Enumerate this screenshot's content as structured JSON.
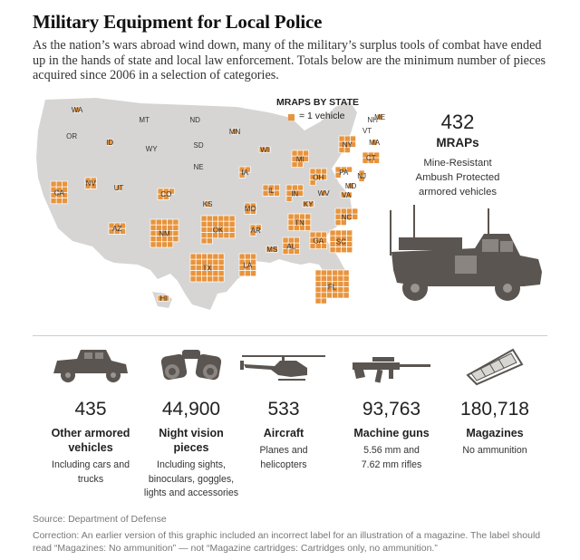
{
  "title": "Military Equipment for Local Police",
  "dek": "As the nation’s wars abroad wind down, many of the military’s surplus tools of combat have ended up in the hands of state and local law enforcement. Totals below are the minimum number of pieces acquired since 2006 in a selection of categories.",
  "legend": {
    "title": "MRAPS BY STATE",
    "unit": "= 1 vehicle"
  },
  "mrap": {
    "value": "432",
    "label": "MRAPs",
    "desc": [
      "Mine-Resistant",
      "Ambush Protected",
      "armored vehicles"
    ]
  },
  "colors": {
    "accent": "#e8943d",
    "map_land": "#d6d5d3",
    "icon": "#5a5551",
    "text": "#222222"
  },
  "chart_data": {
    "type": "table",
    "title": "MRAPS BY STATE",
    "unit": "1 square = 1 vehicle",
    "states": [
      {
        "state": "WA",
        "mraps": 1
      },
      {
        "state": "OR",
        "mraps": 0
      },
      {
        "state": "ID",
        "mraps": 1
      },
      {
        "state": "MT",
        "mraps": 0
      },
      {
        "state": "ND",
        "mraps": 0
      },
      {
        "state": "MN",
        "mraps": 1
      },
      {
        "state": "WY",
        "mraps": 0
      },
      {
        "state": "SD",
        "mraps": 0
      },
      {
        "state": "WI",
        "mraps": 2
      },
      {
        "state": "MI",
        "mraps": 8
      },
      {
        "state": "NY",
        "mraps": 8
      },
      {
        "state": "VT",
        "mraps": 0
      },
      {
        "state": "NH",
        "mraps": 0
      },
      {
        "state": "ME",
        "mraps": 1
      },
      {
        "state": "MA",
        "mraps": 1
      },
      {
        "state": "CT",
        "mraps": 6
      },
      {
        "state": "CA",
        "mraps": 12
      },
      {
        "state": "NV",
        "mraps": 4
      },
      {
        "state": "UT",
        "mraps": 1
      },
      {
        "state": "CO",
        "mraps": 5
      },
      {
        "state": "NE",
        "mraps": 0
      },
      {
        "state": "IA",
        "mraps": 3
      },
      {
        "state": "IL",
        "mraps": 6
      },
      {
        "state": "IN",
        "mraps": 7
      },
      {
        "state": "OH",
        "mraps": 7
      },
      {
        "state": "PA",
        "mraps": 4
      },
      {
        "state": "NJ",
        "mraps": 2
      },
      {
        "state": "MD",
        "mraps": 1
      },
      {
        "state": "WV",
        "mraps": 1
      },
      {
        "state": "VA",
        "mraps": 2
      },
      {
        "state": "KS",
        "mraps": 1
      },
      {
        "state": "MO",
        "mraps": 4
      },
      {
        "state": "KY",
        "mraps": 2
      },
      {
        "state": "AZ",
        "mraps": 6
      },
      {
        "state": "NM",
        "mraps": 24
      },
      {
        "state": "OK",
        "mraps": 26
      },
      {
        "state": "AR",
        "mraps": 3
      },
      {
        "state": "TN",
        "mraps": 12
      },
      {
        "state": "NC",
        "mraps": 10
      },
      {
        "state": "SC",
        "mraps": 16
      },
      {
        "state": "GA",
        "mraps": 9
      },
      {
        "state": "AL",
        "mraps": 9
      },
      {
        "state": "MS",
        "mraps": 2
      },
      {
        "state": "LA",
        "mraps": 12
      },
      {
        "state": "TX",
        "mraps": 30
      },
      {
        "state": "FL",
        "mraps": 32
      },
      {
        "state": "HI",
        "mraps": 2
      }
    ]
  },
  "categories": [
    {
      "value": "435",
      "label": [
        "Other armored",
        "vehicles"
      ],
      "desc": [
        "Including cars and",
        "trucks"
      ]
    },
    {
      "value": "44,900",
      "label": [
        "Night vision",
        "pieces"
      ],
      "desc": [
        "Including sights,",
        "binoculars, goggles,",
        "lights and accessories"
      ]
    },
    {
      "value": "533",
      "label": [
        "Aircraft"
      ],
      "desc": [
        "Planes and",
        "helicopters"
      ]
    },
    {
      "value": "93,763",
      "label": [
        "Machine guns"
      ],
      "desc": [
        "5.56 mm and",
        "7.62 mm rifles"
      ]
    },
    {
      "value": "180,718",
      "label": [
        "Magazines"
      ],
      "desc": [
        "No ammunition"
      ]
    }
  ],
  "source": "Source: Department of Defense",
  "correction": "Correction: An earlier version of this graphic included an incorrect label for an illustration of a magazine. The label should read “Magazines: No ammunition” — not “Magazine cartridges: Cartridges only, no ammunition.”"
}
